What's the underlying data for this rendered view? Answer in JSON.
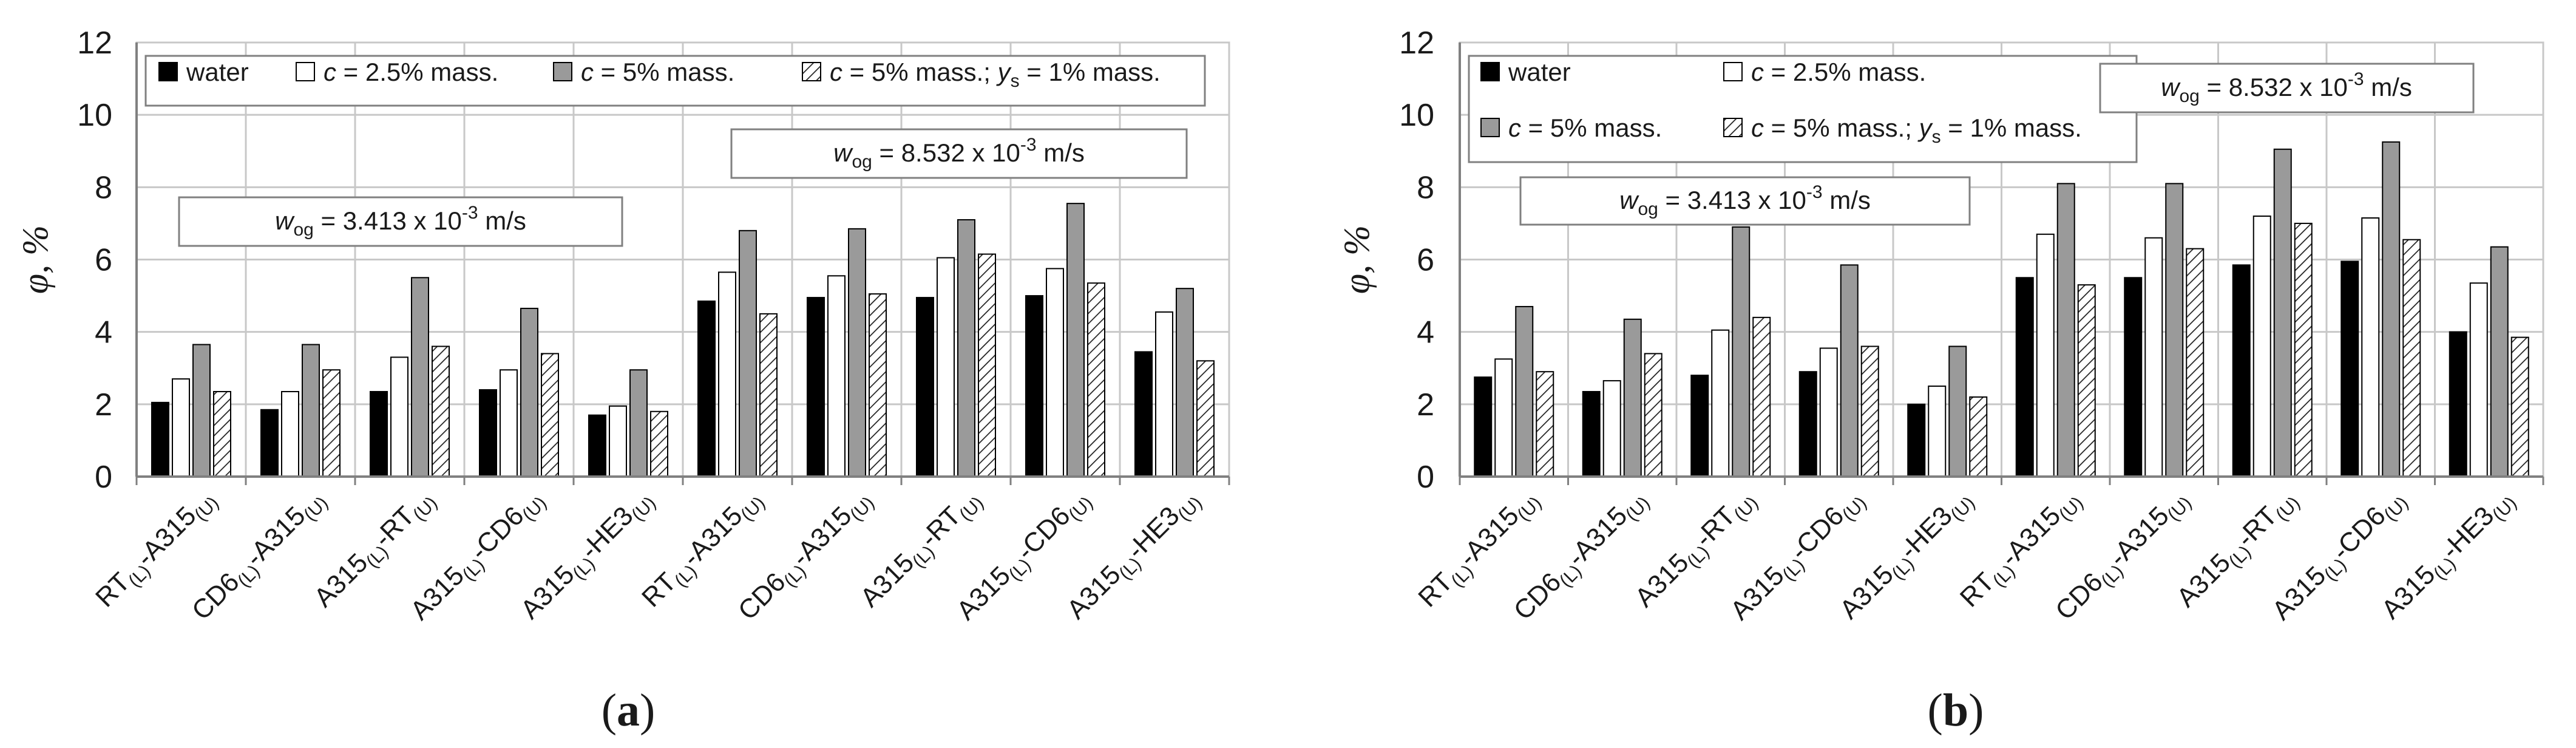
{
  "chart_data": [
    {
      "type": "bar",
      "panel": "a",
      "ylabel": "φ, %",
      "ylim": [
        0,
        12
      ],
      "yticks": [
        0,
        2,
        4,
        6,
        8,
        10,
        12
      ],
      "grid": true,
      "legend": "top",
      "categories": [
        {
          "main": "RT",
          "s1": "(L)",
          "mid": "-A315",
          "s2": "(U)"
        },
        {
          "main": "CD6",
          "s1": "(L)",
          "mid": "-A315",
          "s2": "(U)"
        },
        {
          "main": "A315",
          "s1": "(L)",
          "mid": "-RT",
          "s2": "(U)"
        },
        {
          "main": "A315",
          "s1": "(L)",
          "mid": "-CD6",
          "s2": "(U)"
        },
        {
          "main": "A315",
          "s1": "(L)",
          "mid": "-HE3",
          "s2": "(U)"
        },
        {
          "main": "RT",
          "s1": "(L)",
          "mid": "-A315",
          "s2": "(U)"
        },
        {
          "main": "CD6",
          "s1": "(L)",
          "mid": "-A315",
          "s2": "(U)"
        },
        {
          "main": "A315",
          "s1": "(L)",
          "mid": "-RT",
          "s2": "(U)"
        },
        {
          "main": "A315",
          "s1": "(L)",
          "mid": "-CD6",
          "s2": "(U)"
        },
        {
          "main": "A315",
          "s1": "(L)",
          "mid": "-HE3",
          "s2": "(U)"
        }
      ],
      "series": [
        {
          "name": "water",
          "style": "black",
          "values": [
            2.05,
            1.85,
            2.35,
            2.4,
            1.7,
            4.85,
            4.95,
            4.95,
            5.0,
            3.45
          ]
        },
        {
          "name": "c = 2.5% mass.",
          "style": "white",
          "values": [
            2.7,
            2.35,
            3.3,
            2.95,
            1.95,
            5.65,
            5.55,
            6.05,
            5.75,
            4.55
          ]
        },
        {
          "name": "c = 5% mass.",
          "style": "gray",
          "values": [
            3.65,
            3.65,
            5.5,
            4.65,
            2.95,
            6.8,
            6.85,
            7.1,
            7.55,
            5.2
          ]
        },
        {
          "name": "c = 5% mass.; ys = 1% mass.",
          "style": "hatched",
          "values": [
            2.35,
            2.95,
            3.6,
            3.4,
            1.8,
            4.5,
            5.05,
            6.15,
            5.35,
            3.2
          ]
        }
      ],
      "annotations": [
        {
          "text": "wog = 3.413 x 10-3 m/s"
        },
        {
          "text": "wog = 8.532 x 10-3 m/s"
        }
      ]
    },
    {
      "type": "bar",
      "panel": "b",
      "ylabel": "φ, %",
      "ylim": [
        0,
        12
      ],
      "yticks": [
        0,
        2,
        4,
        6,
        8,
        10,
        12
      ],
      "grid": true,
      "legend": "top-left",
      "categories": [
        {
          "main": "RT",
          "s1": "(L)",
          "mid": "-A315",
          "s2": "(U)"
        },
        {
          "main": "CD6",
          "s1": "(L)",
          "mid": "-A315",
          "s2": "(U)"
        },
        {
          "main": "A315",
          "s1": "(L)",
          "mid": "-RT",
          "s2": "(U)"
        },
        {
          "main": "A315",
          "s1": "(L)",
          "mid": "-CD6",
          "s2": "(U)"
        },
        {
          "main": "A315",
          "s1": "(L)",
          "mid": "-HE3",
          "s2": "(U)"
        },
        {
          "main": "RT",
          "s1": "(L)",
          "mid": "-A315",
          "s2": "(U)"
        },
        {
          "main": "CD6",
          "s1": "(L)",
          "mid": "-A315",
          "s2": "(U)"
        },
        {
          "main": "A315",
          "s1": "(L)",
          "mid": "-RT",
          "s2": "(U)"
        },
        {
          "main": "A315",
          "s1": "(L)",
          "mid": "-CD6",
          "s2": "(U)"
        },
        {
          "main": "A315",
          "s1": "(L)",
          "mid": "-HE3",
          "s2": "(U)"
        }
      ],
      "series": [
        {
          "name": "water",
          "style": "black",
          "values": [
            2.75,
            2.35,
            2.8,
            2.9,
            2.0,
            5.5,
            5.5,
            5.85,
            5.95,
            4.0
          ]
        },
        {
          "name": "c = 2.5% mass.",
          "style": "white",
          "values": [
            3.25,
            2.65,
            4.05,
            3.55,
            2.5,
            6.7,
            6.6,
            7.2,
            7.15,
            5.35
          ]
        },
        {
          "name": "c = 5% mass.",
          "style": "gray",
          "values": [
            4.7,
            4.35,
            6.9,
            5.85,
            3.6,
            8.1,
            8.1,
            9.05,
            9.25,
            6.35
          ]
        },
        {
          "name": "c = 5% mass.; ys = 1% mass.",
          "style": "hatched",
          "values": [
            2.9,
            3.4,
            4.4,
            3.6,
            2.2,
            5.3,
            6.3,
            7.0,
            6.55,
            3.85
          ]
        }
      ],
      "annotations": [
        {
          "text": "wog = 3.413 x 10-3 m/s"
        },
        {
          "text": "wog = 8.532 x 10-3 m/s"
        }
      ]
    }
  ],
  "legend_text": {
    "water": "water",
    "c_var": "c",
    "c25_rest": " = 2.5% mass.",
    "c5_rest": " = 5% mass.",
    "c5ys_mid": " = 5% mass.; ",
    "ys_var": "y",
    "ys_sub": "s",
    "ys_rest": " = 1% mass."
  },
  "annotation_parts": {
    "w": "w",
    "og": "og",
    "val_low": " = 3.413 x 10",
    "val_high": " = 8.532 x 10",
    "exp": "-3",
    "unit": " m/s"
  },
  "panel_labels": {
    "a": {
      "open": "(",
      "letter": "a",
      "close": ")"
    },
    "b": {
      "open": "(",
      "letter": "b",
      "close": ")"
    }
  },
  "colors": {
    "black": "#000000",
    "white": "#ffffff",
    "gray": "#9a9a9a",
    "grid": "#c8c8c8",
    "axis": "#808080",
    "text": "#1a1a1a"
  }
}
